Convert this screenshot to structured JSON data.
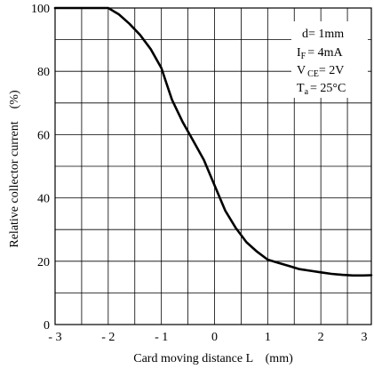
{
  "chart_data": {
    "type": "line",
    "title": "",
    "xlabel": "Card moving distance L　(mm)",
    "ylabel": "Relative collector current　(%)",
    "xlim": [
      -3,
      2.95
    ],
    "ylim": [
      0,
      100
    ],
    "x_ticks": [
      -3,
      -2,
      -1,
      0,
      1,
      2,
      3
    ],
    "x_tick_labels": [
      "- 3",
      "- 2",
      "- 1",
      "0",
      "1",
      "2",
      "3"
    ],
    "y_ticks": [
      0,
      20,
      40,
      60,
      80,
      100
    ],
    "y_tick_labels": [
      "0",
      "20",
      "40",
      "60",
      "80",
      "100"
    ],
    "grid": true,
    "x_grid_step": 0.5,
    "y_grid_step": 10,
    "series": [
      {
        "points": [
          [
            -3.0,
            100
          ],
          [
            -2.0,
            100
          ],
          [
            -1.8,
            98
          ],
          [
            -1.6,
            95
          ],
          [
            -1.4,
            91.5
          ],
          [
            -1.2,
            87
          ],
          [
            -1.0,
            81
          ],
          [
            -0.9,
            76
          ],
          [
            -0.8,
            71
          ],
          [
            -0.6,
            64
          ],
          [
            -0.4,
            58
          ],
          [
            -0.2,
            52
          ],
          [
            0.0,
            44
          ],
          [
            0.2,
            36
          ],
          [
            0.4,
            30.5
          ],
          [
            0.6,
            26
          ],
          [
            0.8,
            23
          ],
          [
            1.0,
            20.5
          ],
          [
            1.2,
            19.5
          ],
          [
            1.4,
            18.5
          ],
          [
            1.6,
            17.5
          ],
          [
            1.8,
            17
          ],
          [
            2.0,
            16.5
          ],
          [
            2.2,
            16
          ],
          [
            2.4,
            15.7
          ],
          [
            2.6,
            15.5
          ],
          [
            2.8,
            15.5
          ],
          [
            2.95,
            15.6
          ]
        ],
        "color": "#000000"
      }
    ],
    "annotations": {
      "d": {
        "label": "d= 1mm"
      },
      "if": {
        "main": "I",
        "sub": "F",
        "rest": "= 4mA"
      },
      "vce": {
        "main": "V",
        "sub": "CE",
        "rest": "= 2V"
      },
      "ta": {
        "main": "T",
        "sub": "a",
        "rest": "= 25°C"
      }
    }
  }
}
